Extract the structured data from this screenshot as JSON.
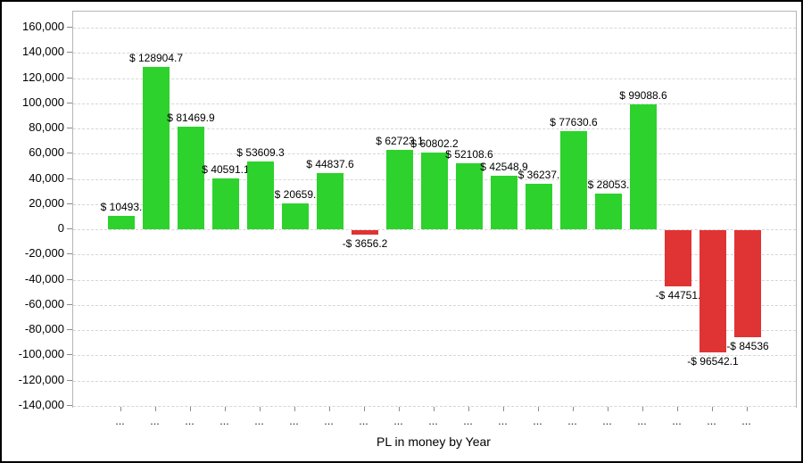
{
  "chart_data": {
    "type": "bar",
    "title": "",
    "xlabel": "PL in money by Year",
    "ylabel": "",
    "ylim": [
      -140000,
      160000
    ],
    "ytick_step": 20000,
    "yticks": [
      "160,000",
      "140,000",
      "120,000",
      "100,000",
      "80,000",
      "60,000",
      "40,000",
      "20,000",
      "0",
      "-20,000",
      "-40,000",
      "-60,000",
      "-80,000",
      "-100,000",
      "-120,000",
      "-140,000"
    ],
    "grid": "horizontal-dashed",
    "legend_position": "none",
    "xtick_labels": [
      "...",
      "...",
      "...",
      "...",
      "...",
      "...",
      "...",
      "...",
      "...",
      "...",
      "...",
      "...",
      "...",
      "...",
      "...",
      "...",
      "...",
      "...",
      "..."
    ],
    "bars": [
      {
        "label": "$ 10493.",
        "value": 10493
      },
      {
        "label": "$ 128904.7",
        "value": 128904.7
      },
      {
        "label": "$ 81469.9",
        "value": 81469.9
      },
      {
        "label": "$ 40591.1",
        "value": 40591.1
      },
      {
        "label": "$ 53609.3",
        "value": 53609.3
      },
      {
        "label": "$ 20659.",
        "value": 20659
      },
      {
        "label": "$ 44837.6",
        "value": 44837.6
      },
      {
        "label": "-$ 3656.2",
        "value": -3656.2
      },
      {
        "label": "$ 62723.1",
        "value": 62723.1
      },
      {
        "label": "$ 60802.2",
        "value": 60802.2
      },
      {
        "label": "$ 52108.6",
        "value": 52108.6
      },
      {
        "label": "$ 42548.9",
        "value": 42548.9
      },
      {
        "label": "$ 36237.",
        "value": 36237
      },
      {
        "label": "$ 77630.6",
        "value": 77630.6
      },
      {
        "label": "$ 28053.",
        "value": 28053
      },
      {
        "label": "$ 99088.6",
        "value": 99088.6
      },
      {
        "label": "-$ 44751.",
        "value": -44751
      },
      {
        "label": "-$ 96542.1",
        "value": -96542.1
      },
      {
        "label": "-$ 84536",
        "value": -84536
      }
    ],
    "colors": {
      "positive_bar": "#2dd22d",
      "negative_bar": "#e03333",
      "gridline": "#d6d6d6",
      "plot_frame": "#b5b5b5",
      "text": "#000000",
      "tick": "#8a8a8a",
      "outer_border": "#000000",
      "background": "#ffffff"
    }
  }
}
